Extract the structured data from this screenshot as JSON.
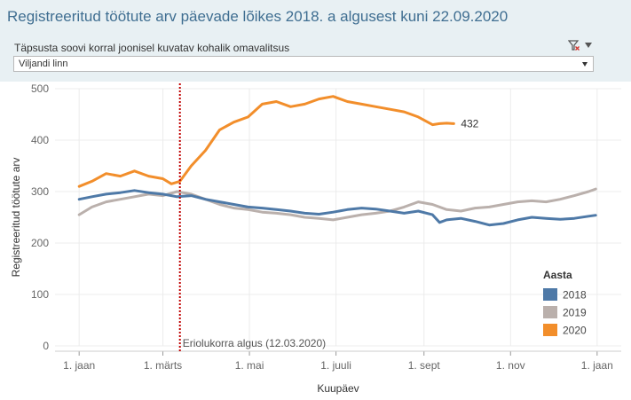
{
  "header": {
    "title": "Registreeritud töötute arv päevade lõikes 2018. a algusest kuni 22.09.2020",
    "filter_label": "Täpsusta soovi korral  joonisel kuvatav kohalik omavalitsus",
    "selected_value": "Viljandi linn"
  },
  "colors": {
    "header_bg": "#e8f0f3",
    "title": "#3f6e91",
    "s2018": "#4e79a7",
    "s2019": "#bab0ac",
    "s2020": "#f28e2b",
    "marker": "#c00000"
  },
  "chart_data": {
    "type": "line",
    "title": "Registreeritud töötute arv päevade lõikes 2018. a algusest kuni 22.09.2020",
    "xlabel": "Kuupäev",
    "ylabel": "Registreeritud töötute arv",
    "x_unit": "day of year",
    "xlim": [
      -16,
      383
    ],
    "ylim": [
      0,
      500
    ],
    "yticks": [
      0,
      100,
      200,
      300,
      400,
      500
    ],
    "xticks": [
      {
        "day": 1,
        "label": "1. jaan"
      },
      {
        "day": 60,
        "label": "1. märts"
      },
      {
        "day": 121,
        "label": "1. mai"
      },
      {
        "day": 182,
        "label": "1. juuli"
      },
      {
        "day": 244,
        "label": "1. sept"
      },
      {
        "day": 305,
        "label": "1. nov"
      },
      {
        "day": 366,
        "label": "1. jaan"
      }
    ],
    "grid": true,
    "legend": {
      "title": "Aasta",
      "position": "right"
    },
    "marker_line": {
      "day": 72,
      "label": "Eriolukorra algus (12.03.2020)"
    },
    "end_label": {
      "series": "2020",
      "text": "432"
    },
    "series": [
      {
        "name": "2018",
        "days": [
          1,
          10,
          20,
          30,
          40,
          50,
          60,
          70,
          80,
          90,
          100,
          110,
          120,
          130,
          140,
          150,
          160,
          170,
          180,
          190,
          200,
          210,
          220,
          230,
          240,
          250,
          255,
          260,
          270,
          280,
          290,
          300,
          310,
          320,
          330,
          340,
          350,
          360,
          365
        ],
        "values": [
          285,
          290,
          295,
          298,
          302,
          298,
          295,
          290,
          292,
          285,
          280,
          275,
          270,
          268,
          265,
          262,
          258,
          256,
          260,
          265,
          268,
          266,
          262,
          258,
          262,
          255,
          240,
          245,
          248,
          242,
          235,
          238,
          245,
          250,
          248,
          246,
          248,
          252,
          254
        ]
      },
      {
        "name": "2019",
        "days": [
          1,
          10,
          20,
          30,
          40,
          50,
          60,
          70,
          80,
          90,
          100,
          110,
          120,
          130,
          140,
          150,
          160,
          170,
          180,
          190,
          200,
          210,
          220,
          230,
          240,
          250,
          260,
          270,
          280,
          290,
          300,
          310,
          320,
          330,
          340,
          350,
          360,
          365
        ],
        "values": [
          255,
          270,
          280,
          285,
          290,
          295,
          292,
          300,
          295,
          285,
          275,
          268,
          265,
          260,
          258,
          255,
          250,
          248,
          245,
          250,
          255,
          258,
          262,
          270,
          280,
          275,
          265,
          262,
          268,
          270,
          275,
          280,
          282,
          280,
          285,
          292,
          300,
          305
        ]
      },
      {
        "name": "2020",
        "days": [
          1,
          10,
          20,
          30,
          40,
          50,
          60,
          66,
          72,
          80,
          90,
          100,
          110,
          120,
          130,
          140,
          150,
          160,
          170,
          180,
          190,
          200,
          210,
          220,
          230,
          240,
          250,
          255,
          260,
          265
        ],
        "values": [
          310,
          320,
          335,
          330,
          340,
          330,
          325,
          315,
          320,
          350,
          380,
          420,
          435,
          445,
          470,
          475,
          465,
          470,
          480,
          485,
          475,
          470,
          465,
          460,
          455,
          445,
          430,
          432,
          433,
          432
        ]
      }
    ]
  }
}
